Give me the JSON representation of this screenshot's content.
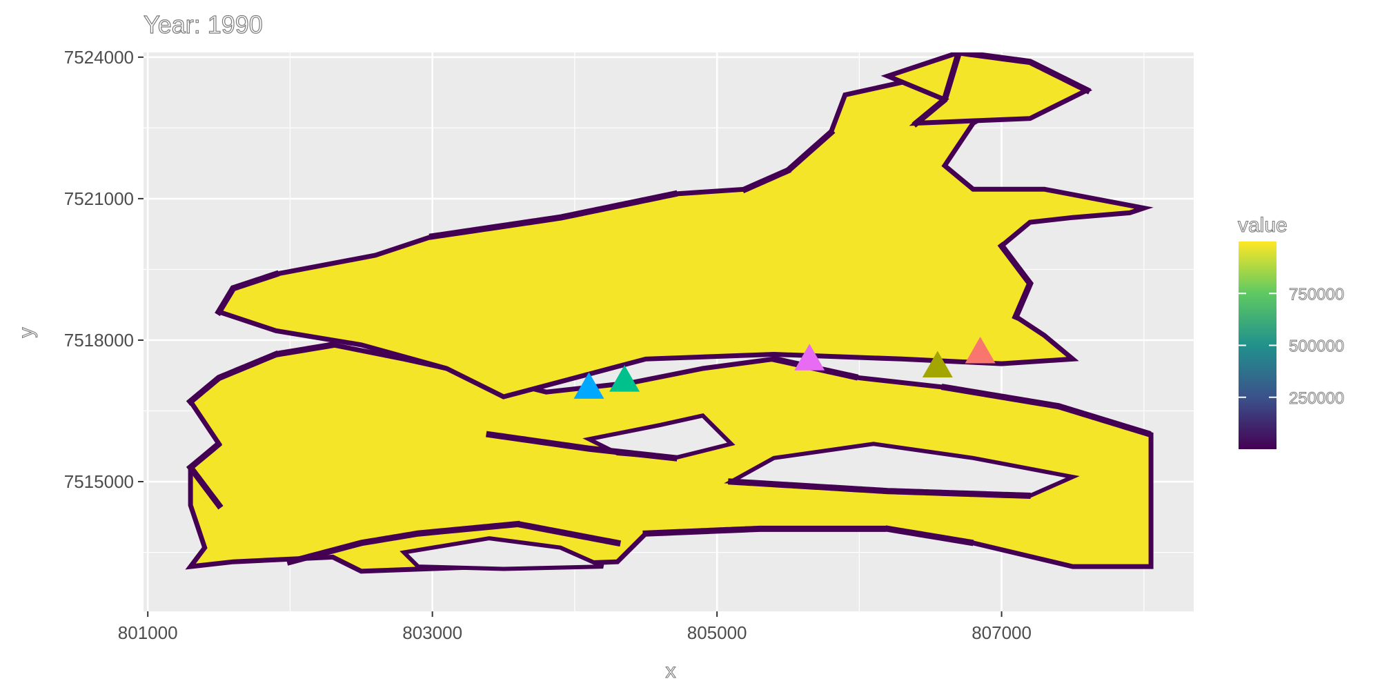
{
  "chart_data": {
    "type": "heatmap",
    "title": "Year: 1990",
    "xlabel": "x",
    "ylabel": "y",
    "xlim": [
      800970,
      808350
    ],
    "ylim": [
      7512250,
      7524100
    ],
    "x_ticks": [
      801000,
      803000,
      805000,
      807000
    ],
    "x_tick_labels": [
      "801000",
      "803000",
      "805000",
      "807000"
    ],
    "y_ticks": [
      7515000,
      7518000,
      7521000,
      7524000
    ],
    "y_tick_labels": [
      "7515000",
      "7518000",
      "7521000",
      "7524000"
    ],
    "grid": true,
    "background": "#ebebeb",
    "raster": {
      "description_colors": {
        "high": "#f4e528",
        "low": "#440154"
      },
      "main_region": [
        [
          801300,
          7513200
        ],
        [
          801600,
          7513300
        ],
        [
          802300,
          7513400
        ],
        [
          802500,
          7513100
        ],
        [
          804300,
          7513300
        ],
        [
          804500,
          7513900
        ],
        [
          805300,
          7514000
        ],
        [
          806200,
          7514000
        ],
        [
          806800,
          7513700
        ],
        [
          807500,
          7513200
        ],
        [
          808050,
          7513200
        ],
        [
          808050,
          7516000
        ],
        [
          807400,
          7516600
        ],
        [
          806600,
          7517000
        ],
        [
          806000,
          7517200
        ],
        [
          805400,
          7517600
        ],
        [
          804900,
          7517400
        ],
        [
          804400,
          7517100
        ],
        [
          803800,
          7516900
        ],
        [
          803400,
          7517200
        ],
        [
          802800,
          7517600
        ],
        [
          802300,
          7517900
        ],
        [
          801900,
          7517700
        ],
        [
          801500,
          7517200
        ],
        [
          801300,
          7516700
        ],
        [
          801500,
          7515800
        ],
        [
          801300,
          7515300
        ],
        [
          801300,
          7514500
        ],
        [
          801400,
          7513600
        ]
      ],
      "central_region": [
        [
          803500,
          7516800
        ],
        [
          804500,
          7517600
        ],
        [
          805400,
          7517700
        ],
        [
          806300,
          7517600
        ],
        [
          807000,
          7517500
        ],
        [
          807500,
          7517600
        ],
        [
          807300,
          7518100
        ],
        [
          807100,
          7518500
        ],
        [
          807200,
          7519200
        ],
        [
          807000,
          7520000
        ],
        [
          807200,
          7520500
        ],
        [
          807500,
          7520600
        ],
        [
          807900,
          7520700
        ],
        [
          808000,
          7520800
        ],
        [
          807300,
          7521200
        ],
        [
          806800,
          7521200
        ],
        [
          806600,
          7521700
        ],
        [
          806800,
          7522600
        ],
        [
          807200,
          7523300
        ],
        [
          806800,
          7523600
        ],
        [
          806500,
          7523600
        ],
        [
          805900,
          7523200
        ],
        [
          805800,
          7522400
        ],
        [
          805500,
          7521600
        ],
        [
          805200,
          7521200
        ],
        [
          804700,
          7521100
        ],
        [
          803900,
          7520600
        ],
        [
          803000,
          7520200
        ],
        [
          802600,
          7519800
        ],
        [
          801900,
          7519400
        ],
        [
          801600,
          7519100
        ],
        [
          801500,
          7518600
        ],
        [
          801900,
          7518200
        ],
        [
          802500,
          7517900
        ],
        [
          803100,
          7517400
        ]
      ],
      "top_region": [
        [
          806400,
          7522600
        ],
        [
          807200,
          7522700
        ],
        [
          807600,
          7523300
        ],
        [
          807200,
          7523900
        ],
        [
          806700,
          7524100
        ],
        [
          806200,
          7523600
        ],
        [
          806600,
          7523100
        ]
      ],
      "holes": [
        [
          [
            804100,
            7515900
          ],
          [
            804600,
            7516200
          ],
          [
            804900,
            7516400
          ],
          [
            805100,
            7515800
          ],
          [
            804700,
            7515500
          ],
          [
            804300,
            7515600
          ]
        ],
        [
          [
            805100,
            7515000
          ],
          [
            805400,
            7515500
          ],
          [
            806100,
            7515800
          ],
          [
            806800,
            7515500
          ],
          [
            807500,
            7515100
          ],
          [
            807200,
            7514700
          ],
          [
            806200,
            7514800
          ]
        ],
        [
          [
            802800,
            7513500
          ],
          [
            803400,
            7513800
          ],
          [
            803900,
            7513600
          ],
          [
            804200,
            7513200
          ],
          [
            803500,
            7513150
          ],
          [
            802900,
            7513200
          ]
        ]
      ],
      "fringe_strokes": [
        [
          [
            801300,
            7516700
          ],
          [
            801500,
            7517200
          ],
          [
            801900,
            7517700
          ],
          [
            802300,
            7517900
          ]
        ],
        [
          [
            801500,
            7514500
          ],
          [
            801300,
            7515300
          ],
          [
            801500,
            7515800
          ]
        ],
        [
          [
            802000,
            7513300
          ],
          [
            802500,
            7513700
          ],
          [
            802900,
            7513900
          ],
          [
            803600,
            7514100
          ],
          [
            804300,
            7513700
          ]
        ],
        [
          [
            804500,
            7513900
          ],
          [
            805300,
            7514000
          ],
          [
            806200,
            7514000
          ],
          [
            806800,
            7513700
          ]
        ],
        [
          [
            807100,
            7518500
          ],
          [
            807200,
            7519200
          ],
          [
            807000,
            7520000
          ]
        ],
        [
          [
            806400,
            7522600
          ],
          [
            806600,
            7523100
          ],
          [
            806700,
            7524100
          ],
          [
            807200,
            7523900
          ],
          [
            807600,
            7523300
          ]
        ],
        [
          [
            805800,
            7522400
          ],
          [
            805500,
            7521600
          ],
          [
            805200,
            7521200
          ]
        ],
        [
          [
            803000,
            7520200
          ],
          [
            803900,
            7520600
          ],
          [
            804700,
            7521100
          ]
        ],
        [
          [
            801900,
            7519400
          ],
          [
            801600,
            7519100
          ],
          [
            801500,
            7518600
          ]
        ],
        [
          [
            806600,
            7517000
          ],
          [
            807400,
            7516600
          ],
          [
            808050,
            7516000
          ]
        ],
        [
          [
            805400,
            7517600
          ],
          [
            806000,
            7517200
          ]
        ],
        [
          [
            803400,
            7516000
          ],
          [
            804100,
            7515700
          ],
          [
            804700,
            7515500
          ]
        ],
        [
          [
            805100,
            7515000
          ],
          [
            806200,
            7514800
          ],
          [
            807200,
            7514700
          ]
        ]
      ]
    },
    "points": [
      {
        "x": 804100,
        "y": 7517000,
        "color": "#00a9ff"
      },
      {
        "x": 804350,
        "y": 7517150,
        "color": "#00c08b"
      },
      {
        "x": 805650,
        "y": 7517600,
        "color": "#e76bf3"
      },
      {
        "x": 806550,
        "y": 7517450,
        "color": "#a3a500"
      },
      {
        "x": 806850,
        "y": 7517750,
        "color": "#f8766d"
      }
    ],
    "legend": {
      "title": "value",
      "position": "right",
      "ticks": [
        250000,
        500000,
        750000
      ],
      "tick_labels": [
        "250000",
        "500000",
        "750000"
      ],
      "range": [
        0,
        1000000
      ],
      "colors": [
        "#440154",
        "#3b528b",
        "#21918c",
        "#5ec962",
        "#fde725"
      ]
    }
  }
}
